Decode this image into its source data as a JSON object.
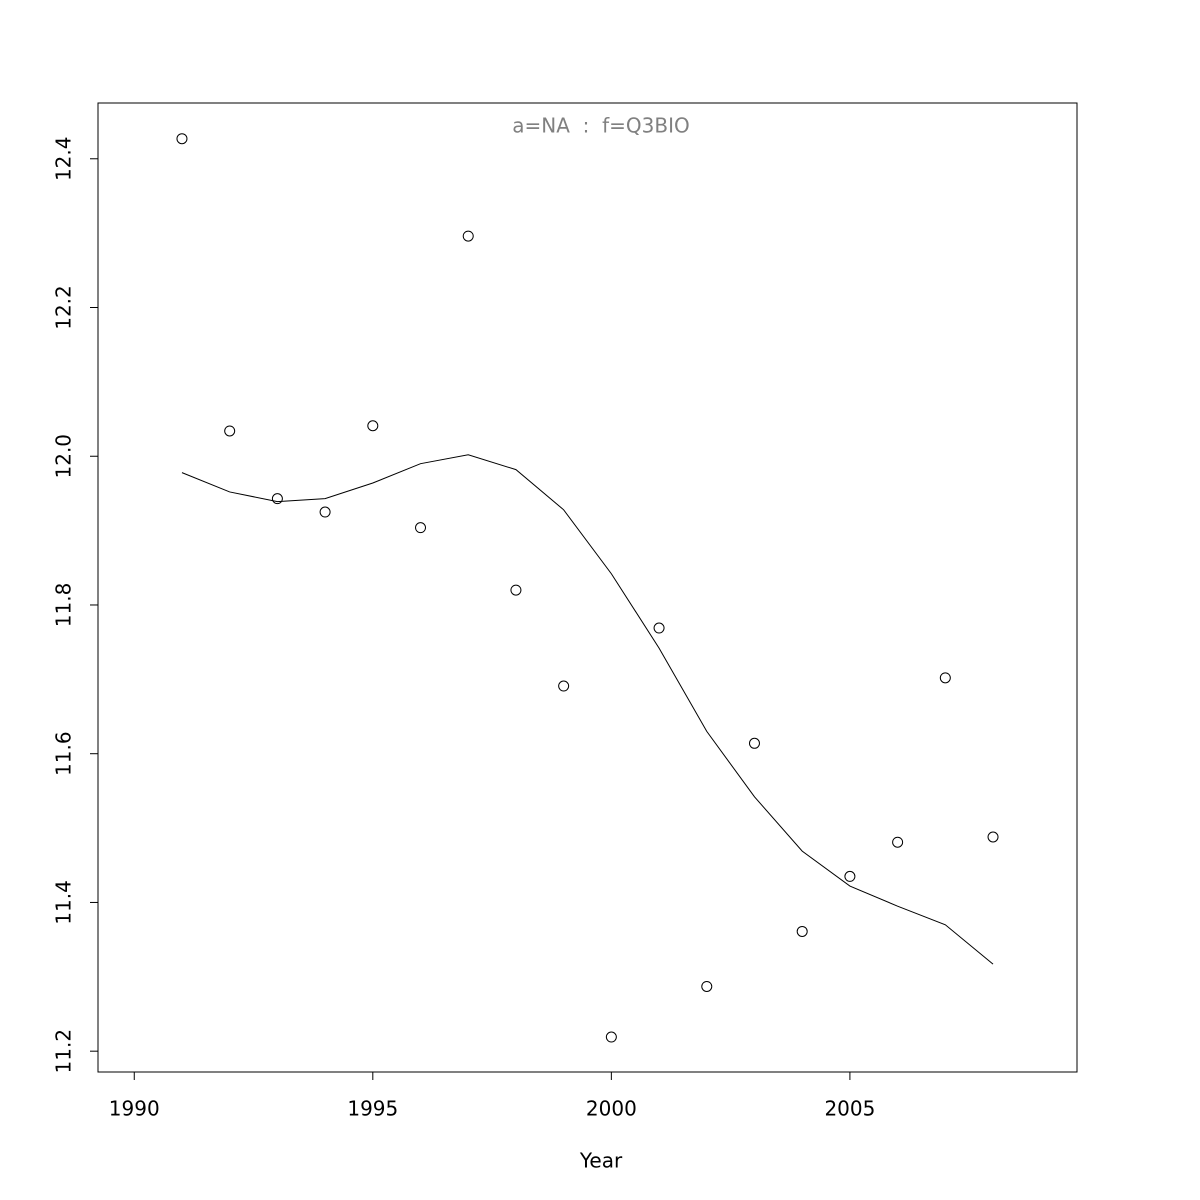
{
  "chart_data": {
    "type": "scatter",
    "title": "a=NA  :  f=Q3BIO",
    "x_label": "Year",
    "x": [
      1991,
      1992,
      1993,
      1994,
      1995,
      1996,
      1997,
      1998,
      1999,
      2000,
      2001,
      2002,
      2003,
      2004,
      2005,
      2006,
      2007,
      2008
    ],
    "series": [
      {
        "style": "points",
        "color": "#000000",
        "values": [
          12.427,
          12.034,
          11.943,
          11.925,
          12.041,
          11.904,
          12.296,
          11.82,
          11.691,
          11.219,
          11.769,
          11.287,
          11.614,
          11.361,
          11.435,
          11.481,
          11.702,
          11.488
        ]
      },
      {
        "style": "line",
        "color": "#000000",
        "values": [
          11.978,
          11.952,
          11.939,
          11.943,
          11.964,
          11.99,
          12.002,
          11.982,
          11.928,
          11.842,
          11.742,
          11.63,
          11.542,
          11.469,
          11.422,
          11.395,
          11.37,
          11.317
        ]
      }
    ],
    "xlim": [
      1989.24,
      2009.76
    ],
    "xticks": [
      1990,
      1995,
      2000,
      2005
    ],
    "ylim": [
      11.172,
      12.475
    ],
    "yticks": [
      11.2,
      11.4,
      11.6,
      11.8,
      12.0,
      12.2,
      12.4
    ],
    "grid": false
  }
}
